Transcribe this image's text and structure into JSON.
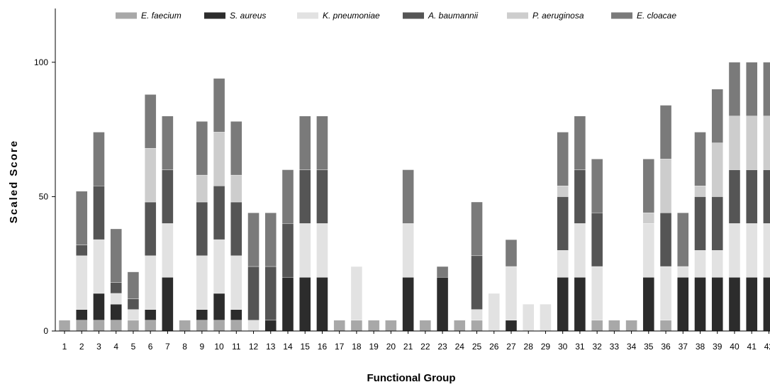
{
  "chart_data": {
    "type": "bar",
    "stacked": true,
    "xlabel": "Functional Group",
    "ylabel": "Scaled Score",
    "ylim": [
      0,
      120
    ],
    "yticks": [
      0,
      50,
      100
    ],
    "grid": false,
    "legend_position": "top",
    "categories": [
      "1",
      "2",
      "3",
      "4",
      "5",
      "6",
      "7",
      "8",
      "9",
      "10",
      "11",
      "12",
      "13",
      "14",
      "15",
      "16",
      "17",
      "18",
      "19",
      "20",
      "21",
      "22",
      "23",
      "24",
      "25",
      "26",
      "27",
      "28",
      "29",
      "30",
      "31",
      "32",
      "33",
      "34",
      "35",
      "36",
      "37",
      "38",
      "39",
      "40",
      "41",
      "42"
    ],
    "series": [
      {
        "name": "E. faecium",
        "values": [
          4,
          4,
          4,
          4,
          4,
          4,
          0,
          4,
          4,
          4,
          4,
          0,
          0,
          0,
          0,
          0,
          4,
          4,
          4,
          4,
          0,
          4,
          0,
          4,
          4,
          0,
          0,
          0,
          0,
          0,
          0,
          4,
          4,
          4,
          0,
          4,
          0,
          0,
          0,
          0,
          0,
          0
        ]
      },
      {
        "name": "S. aureus",
        "values": [
          0,
          4,
          10,
          6,
          0,
          4,
          20,
          0,
          4,
          10,
          4,
          0,
          4,
          20,
          20,
          20,
          0,
          0,
          0,
          0,
          20,
          0,
          20,
          0,
          0,
          0,
          4,
          0,
          0,
          20,
          20,
          0,
          0,
          0,
          20,
          0,
          20,
          20,
          20,
          20,
          20,
          20
        ]
      },
      {
        "name": "K. pneumoniae",
        "values": [
          0,
          20,
          20,
          4,
          4,
          20,
          20,
          0,
          20,
          20,
          20,
          4,
          0,
          0,
          20,
          20,
          0,
          20,
          0,
          0,
          20,
          0,
          0,
          0,
          4,
          14,
          20,
          10,
          10,
          10,
          20,
          20,
          0,
          0,
          20,
          20,
          4,
          10,
          10,
          20,
          20,
          20
        ]
      },
      {
        "name": "A. baumannii",
        "values": [
          0,
          4,
          20,
          4,
          4,
          20,
          20,
          0,
          20,
          20,
          20,
          20,
          20,
          20,
          20,
          20,
          0,
          0,
          0,
          0,
          0,
          0,
          0,
          0,
          20,
          0,
          0,
          0,
          0,
          20,
          20,
          20,
          0,
          0,
          0,
          20,
          0,
          20,
          20,
          20,
          20,
          20
        ]
      },
      {
        "name": "P. aeruginosa",
        "values": [
          0,
          0,
          0,
          0,
          0,
          20,
          0,
          0,
          10,
          20,
          10,
          0,
          0,
          0,
          0,
          0,
          0,
          0,
          0,
          0,
          0,
          0,
          0,
          0,
          0,
          0,
          0,
          0,
          0,
          4,
          0,
          0,
          0,
          0,
          4,
          20,
          0,
          4,
          20,
          20,
          20,
          20
        ]
      },
      {
        "name": "E. cloacae",
        "values": [
          0,
          20,
          20,
          20,
          10,
          20,
          20,
          0,
          20,
          20,
          20,
          20,
          20,
          20,
          20,
          20,
          0,
          0,
          0,
          0,
          20,
          0,
          4,
          0,
          20,
          0,
          10,
          0,
          0,
          20,
          20,
          20,
          0,
          0,
          20,
          20,
          20,
          20,
          20,
          20,
          20,
          20
        ]
      }
    ],
    "colors": [
      "#a8a8a8",
      "#2c2c2c",
      "#e2e2e2",
      "#555555",
      "#cdcdcd",
      "#7a7a7a"
    ]
  }
}
